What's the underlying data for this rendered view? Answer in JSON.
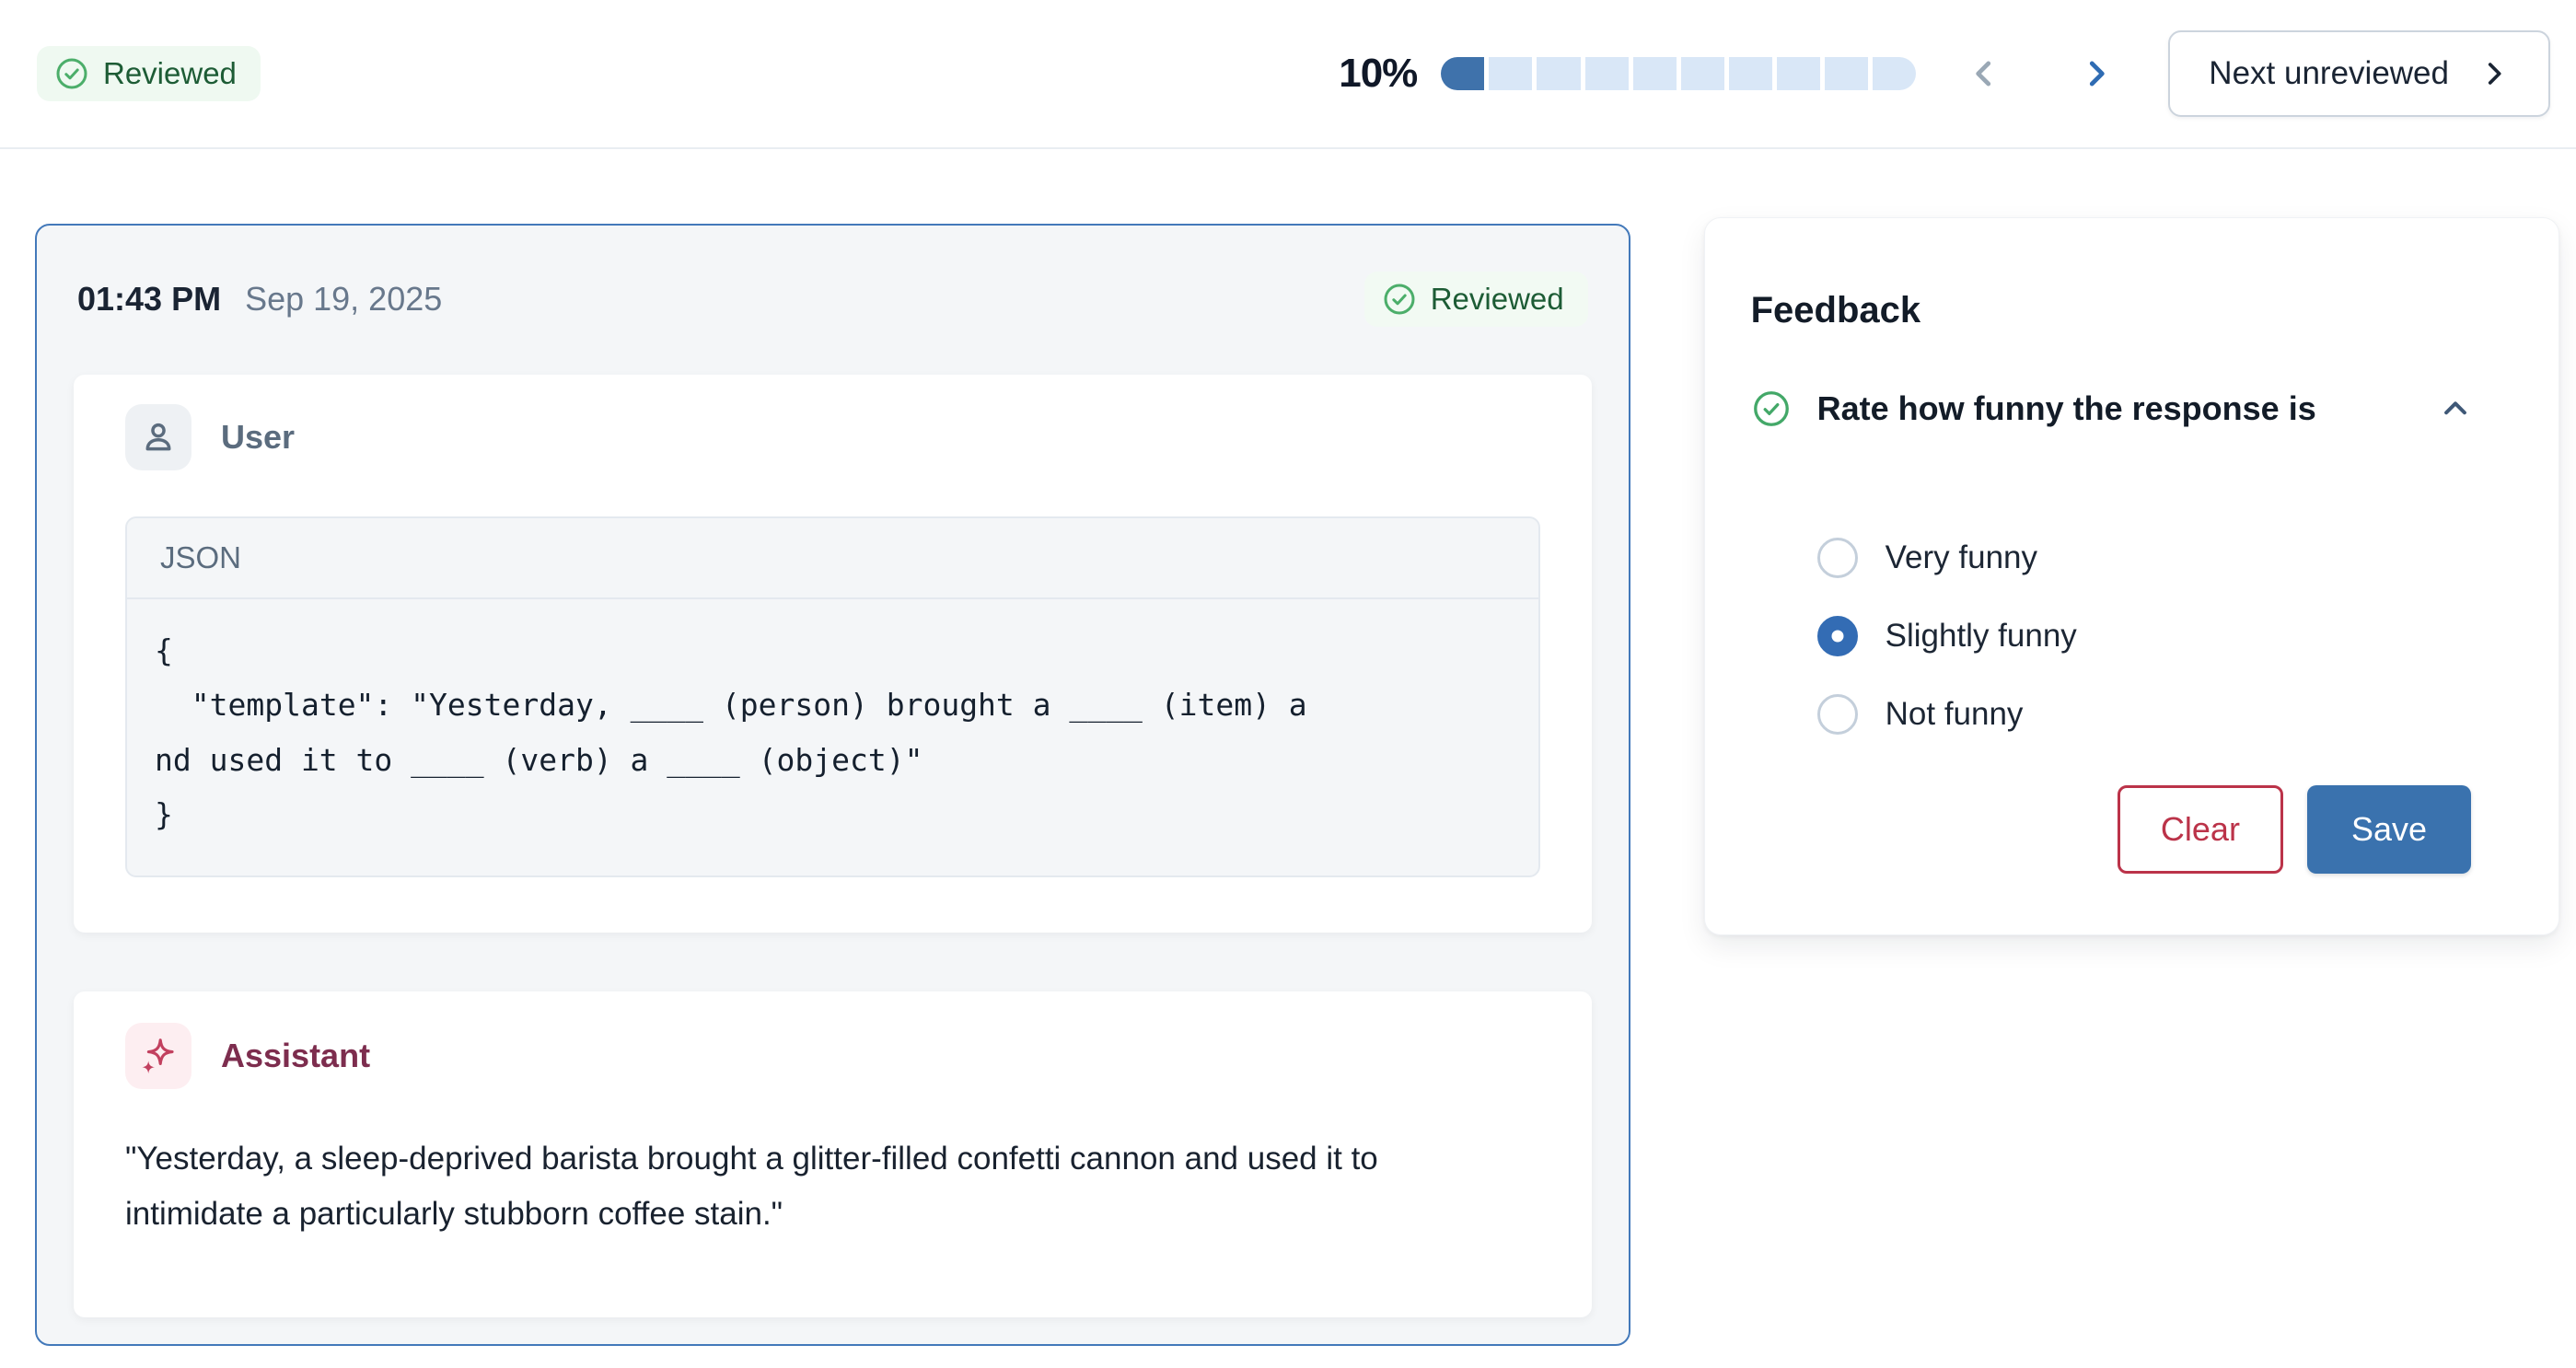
{
  "top_bar": {
    "review_status_badge": {
      "label": "Reviewed",
      "icon": "check-circle-icon"
    },
    "progress": {
      "label": "10%",
      "percent": 10,
      "segments_total": 10,
      "segments_filled": 1
    },
    "prev_button": {
      "icon": "chevron-left-icon",
      "enabled": false
    },
    "next_button": {
      "icon": "chevron-right-icon",
      "enabled": true
    },
    "next_unreviewed_button": {
      "label": "Next unreviewed",
      "icon": "chevron-right-icon"
    }
  },
  "conversation_card": {
    "timestamp": {
      "time": "01:43 PM",
      "date": "Sep 19, 2025"
    },
    "status_badge": {
      "label": "Reviewed",
      "icon": "check-circle-icon"
    },
    "user_message": {
      "role_label": "User",
      "role_icon": "person-icon",
      "code_block": {
        "language_label": "JSON",
        "code": "{\n  \"template\": \"Yesterday, ____ (person) brought a ____ (item) a\nnd used it to ____ (verb) a ____ (object)\"\n}"
      }
    },
    "assistant_message": {
      "role_label": "Assistant",
      "role_icon": "sparkles-icon",
      "text": "\"Yesterday, a sleep-deprived barista brought a glitter-filled confetti cannon and used it to intimidate a particularly stubborn coffee stain.\""
    }
  },
  "feedback_panel": {
    "title": "Feedback",
    "question": {
      "label": "Rate how funny the response is",
      "status_icon": "check-circle-icon",
      "collapse_icon": "chevron-up-icon"
    },
    "options": [
      {
        "label": "Very funny",
        "selected": false,
        "aria_checked": "false"
      },
      {
        "label": "Slightly funny",
        "selected": true,
        "aria_checked": "true"
      },
      {
        "label": "Not funny",
        "selected": false,
        "aria_checked": "false"
      }
    ],
    "actions": {
      "clear_label": "Clear",
      "save_label": "Save"
    }
  },
  "colors": {
    "accent_blue": "#3a72ae",
    "progress_fill": "#3f72ab",
    "progress_track": "#d9e7f7",
    "card_border_blue": "#4379ba",
    "success_green": "#4cae6a",
    "success_text_green": "#1d5c35",
    "success_bg_green": "#eff9f1",
    "danger_red": "#bb3349",
    "assistant_maroon": "#7d2d4e",
    "assistant_icon_crimson": "#c2405f",
    "slate_gray": "#5b6c7e"
  }
}
